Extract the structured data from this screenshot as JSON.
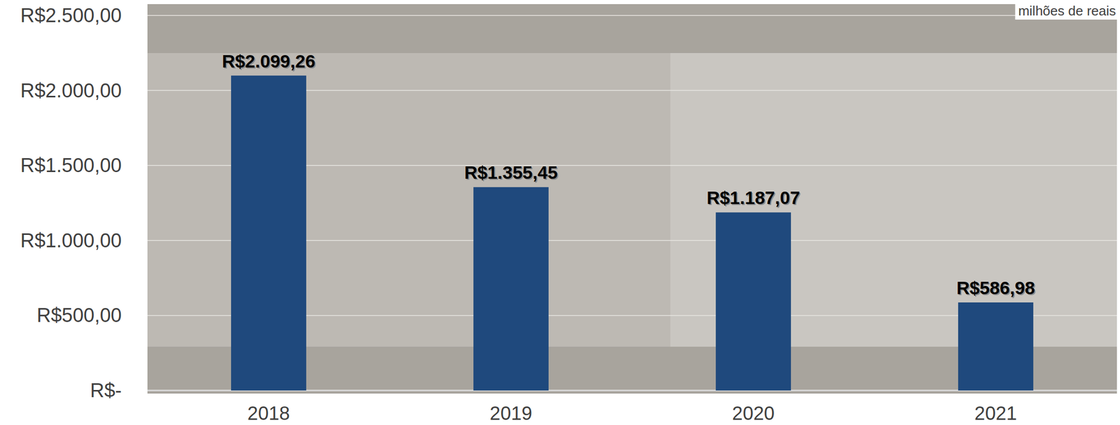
{
  "chart_data": {
    "type": "bar",
    "subtitle": "milhões de reais",
    "categories": [
      "2018",
      "2019",
      "2020",
      "2021"
    ],
    "values": [
      2099.26,
      1355.45,
      1187.07,
      586.98
    ],
    "value_labels": [
      "R$2.099,26",
      "R$1.355,45",
      "R$1.187,07",
      "R$586,98"
    ],
    "color": "#1f497d",
    "ylim": [
      0,
      2500
    ],
    "yticks": [
      {
        "value": 0,
        "label": "R$-"
      },
      {
        "value": 500,
        "label": "R$500,00"
      },
      {
        "value": 1000,
        "label": "R$1.000,00"
      },
      {
        "value": 1500,
        "label": "R$1.500,00"
      },
      {
        "value": 2000,
        "label": "R$2.000,00"
      },
      {
        "value": 2500,
        "label": "R$2.500,00"
      }
    ],
    "grid": true,
    "data_labels": true
  }
}
